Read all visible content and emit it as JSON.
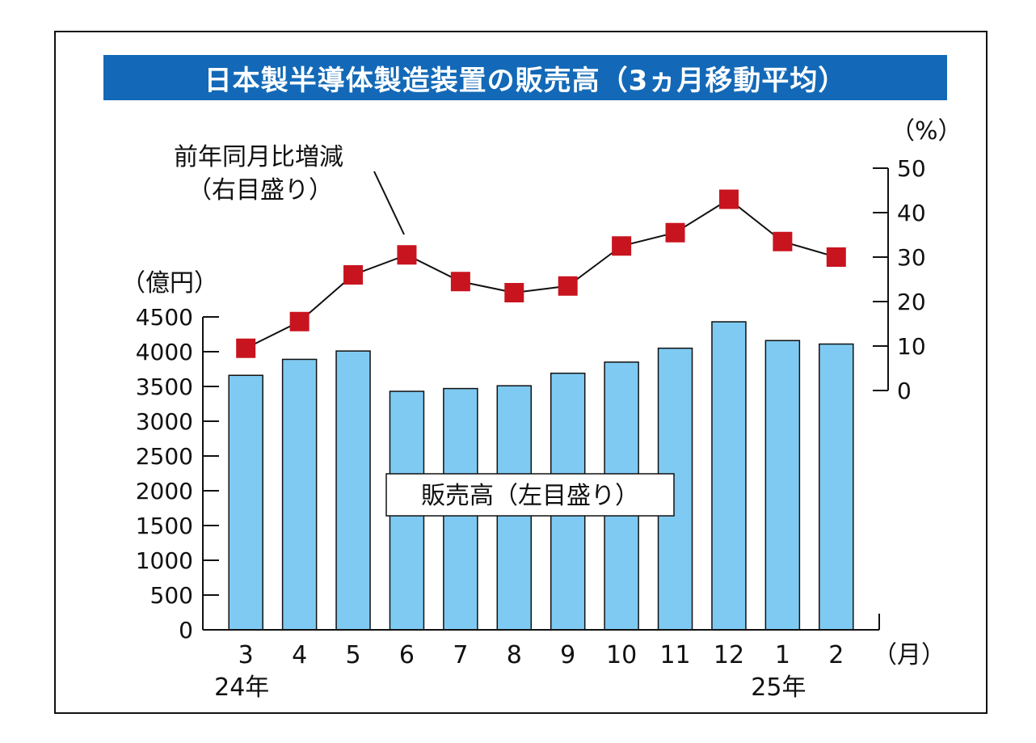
{
  "chart_data": {
    "type": "bar+line",
    "title": "日本製半導体製造装置の販売高（3ヵ月移動平均）",
    "categories": [
      "3",
      "4",
      "5",
      "6",
      "7",
      "8",
      "9",
      "10",
      "11",
      "12",
      "1",
      "2"
    ],
    "year_labels": [
      {
        "category_index": 0,
        "label": "24年"
      },
      {
        "category_index": 10,
        "label": "25年"
      }
    ],
    "x_unit": "（月）",
    "left_axis": {
      "unit": "（億円）",
      "ylim": [
        0,
        4500
      ],
      "ticks": [
        0,
        500,
        1000,
        1500,
        2000,
        2500,
        3000,
        3500,
        4000,
        4500
      ]
    },
    "right_axis": {
      "unit": "（%）",
      "ylim": [
        0,
        50
      ],
      "ticks": [
        0,
        10,
        20,
        30,
        40,
        50
      ]
    },
    "series": [
      {
        "name": "販売高（左目盛り）",
        "kind": "bar",
        "axis": "left",
        "color": "#7fcaf2",
        "values": [
          3660,
          3890,
          4010,
          3430,
          3470,
          3510,
          3690,
          3850,
          4050,
          4430,
          4160,
          4110
        ]
      },
      {
        "name": "前年同月比増減（右目盛り）",
        "kind": "line",
        "axis": "right",
        "color": "#c8141e",
        "values": [
          9.5,
          15.5,
          26.0,
          30.5,
          24.5,
          22.0,
          23.5,
          32.5,
          35.5,
          43.0,
          33.5,
          30.0
        ]
      }
    ],
    "annotations": {
      "line_label_lines": [
        "前年同月比増減",
        "（右目盛り）"
      ],
      "bar_label": "販売高（左目盛り）"
    }
  }
}
